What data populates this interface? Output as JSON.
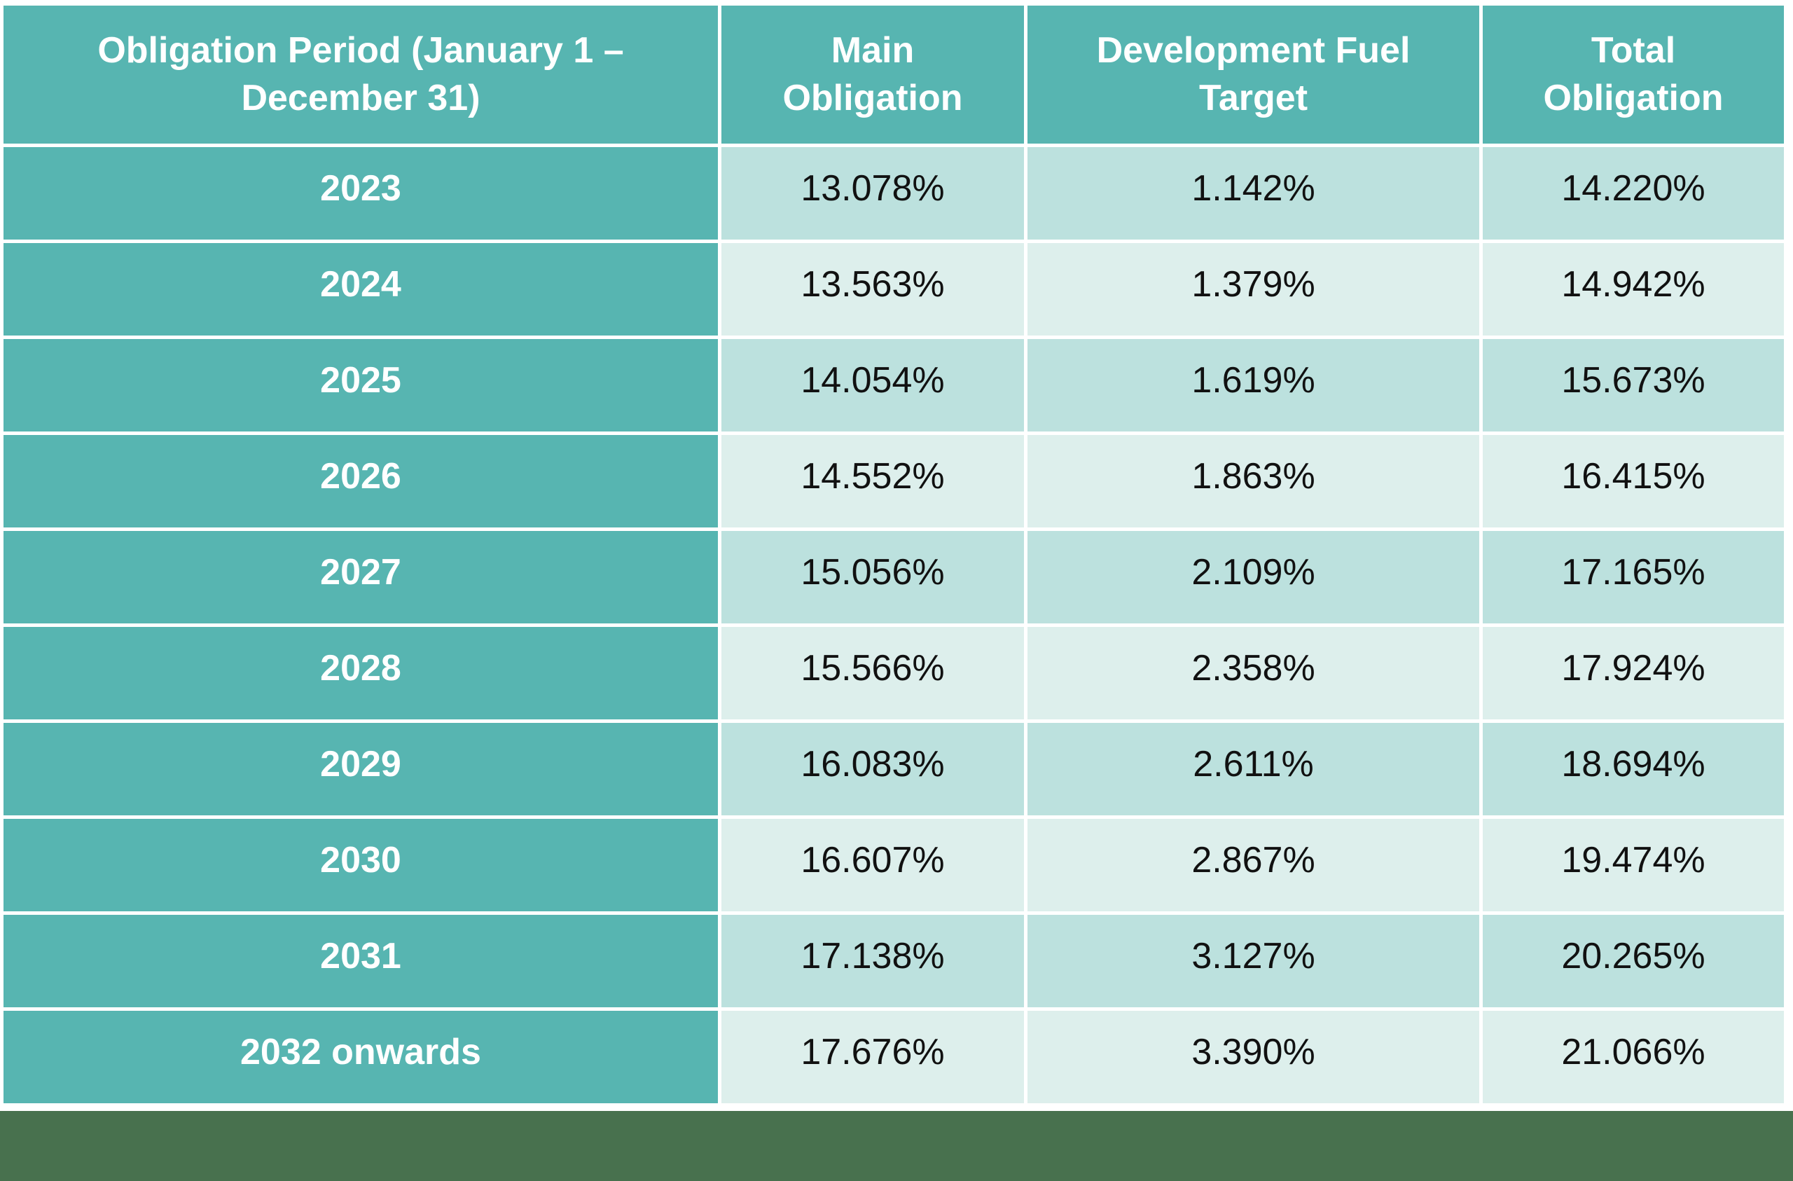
{
  "theme": {
    "header_bg": "#57B5B1",
    "row_dark_bg": "#BCE1DE",
    "row_light_bg": "#DDEFEC",
    "header_text": "#FFFFFF",
    "value_text": "#111111",
    "footer_bg": "#48714E",
    "page_bg": "#FFFFFF"
  },
  "table": {
    "columns": [
      "Obligation Period (January 1 – December 31)",
      "Main Obligation",
      "Development Fuel Target",
      "Total Obligation"
    ],
    "rows": [
      {
        "period": "2023",
        "main_obligation": "13.078%",
        "development_fuel_target": "1.142%",
        "total_obligation": "14.220%"
      },
      {
        "period": "2024",
        "main_obligation": "13.563%",
        "development_fuel_target": "1.379%",
        "total_obligation": "14.942%"
      },
      {
        "period": "2025",
        "main_obligation": "14.054%",
        "development_fuel_target": "1.619%",
        "total_obligation": "15.673%"
      },
      {
        "period": "2026",
        "main_obligation": "14.552%",
        "development_fuel_target": "1.863%",
        "total_obligation": "16.415%"
      },
      {
        "period": "2027",
        "main_obligation": "15.056%",
        "development_fuel_target": "2.109%",
        "total_obligation": "17.165%"
      },
      {
        "period": "2028",
        "main_obligation": "15.566%",
        "development_fuel_target": "2.358%",
        "total_obligation": "17.924%"
      },
      {
        "period": "2029",
        "main_obligation": "16.083%",
        "development_fuel_target": "2.611%",
        "total_obligation": "18.694%"
      },
      {
        "period": "2030",
        "main_obligation": "16.607%",
        "development_fuel_target": "2.867%",
        "total_obligation": "19.474%"
      },
      {
        "period": "2031",
        "main_obligation": "17.138%",
        "development_fuel_target": "3.127%",
        "total_obligation": "20.265%"
      },
      {
        "period": "2032 onwards",
        "main_obligation": "17.676%",
        "development_fuel_target": "3.390%",
        "total_obligation": "21.066%"
      }
    ]
  }
}
